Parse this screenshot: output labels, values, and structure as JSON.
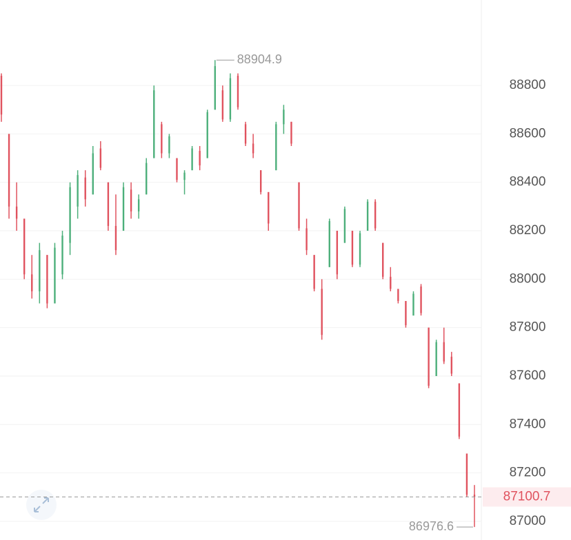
{
  "chart_data": {
    "type": "candlestick",
    "high": [
      88850,
      88600,
      88400,
      88250,
      88100,
      88150,
      88100,
      88150,
      88200,
      88400,
      88450,
      88450,
      88550,
      88570,
      88400,
      88350,
      88400,
      88400,
      88350,
      88500,
      88800,
      88650,
      88600,
      88500,
      88450,
      88550,
      88550,
      88700,
      88904.9,
      88800,
      88850,
      88850,
      88650,
      88600,
      88450,
      88350,
      88650,
      88720,
      88650,
      88400,
      88250,
      88100,
      88000,
      88250,
      88200,
      88300,
      88200,
      88200,
      88330,
      88330,
      88150,
      88050,
      87950,
      87900,
      87950,
      87980,
      87800,
      87750,
      87800,
      87700,
      87570,
      87280,
      87150
    ],
    "low": [
      88650,
      88250,
      88200,
      88000,
      87920,
      87900,
      87880,
      87900,
      88000,
      88100,
      88250,
      88300,
      88350,
      88450,
      88200,
      88100,
      88200,
      88250,
      88250,
      88350,
      88500,
      88500,
      88500,
      88400,
      88350,
      88450,
      88450,
      88500,
      88700,
      88650,
      88650,
      88700,
      88550,
      88500,
      88350,
      88200,
      88450,
      88600,
      88550,
      88200,
      88100,
      87950,
      87750,
      88050,
      88000,
      88150,
      88050,
      88050,
      88200,
      88200,
      88000,
      87950,
      87900,
      87800,
      87850,
      87850,
      87550,
      87600,
      87650,
      87600,
      87340,
      87100,
      86976.6
    ],
    "open": [
      88840,
      88600,
      88300,
      88250,
      88020,
      87950,
      88100,
      87900,
      88020,
      88150,
      88300,
      88420,
      88350,
      88540,
      88400,
      88220,
      88200,
      88370,
      88280,
      88350,
      88500,
      88640,
      88520,
      88500,
      88410,
      88450,
      88530,
      88500,
      88700,
      88780,
      88660,
      88840,
      88640,
      88560,
      88450,
      88360,
      88450,
      88640,
      88650,
      88400,
      88210,
      88100,
      87960,
      88050,
      88200,
      88150,
      88200,
      88060,
      88200,
      88320,
      88150,
      88010,
      87960,
      87910,
      87850,
      87970,
      87800,
      87600,
      87740,
      87680,
      87570,
      87280,
      87110
    ],
    "close": [
      88680,
      88300,
      88250,
      88020,
      87950,
      88120,
      87900,
      88130,
      88180,
      88380,
      88430,
      88330,
      88520,
      88460,
      88220,
      88120,
      88380,
      88280,
      88330,
      88480,
      88780,
      88520,
      88590,
      88410,
      88440,
      88540,
      88470,
      88690,
      88880,
      88660,
      88830,
      88710,
      88560,
      88520,
      88360,
      88230,
      88640,
      88700,
      88560,
      88210,
      88120,
      87960,
      87770,
      88240,
      88020,
      88290,
      88060,
      88190,
      88320,
      88210,
      88010,
      87960,
      87910,
      87810,
      87940,
      87860,
      87560,
      87740,
      87660,
      87610,
      87350,
      87110,
      87100.7
    ],
    "up_color": "#4caf7a",
    "down_color": "#e0525e",
    "ylim": [
      86923,
      89153
    ],
    "yticks": [
      87000,
      87200,
      87400,
      87600,
      87800,
      88000,
      88200,
      88400,
      88600,
      88800
    ],
    "grid": true
  }
}
